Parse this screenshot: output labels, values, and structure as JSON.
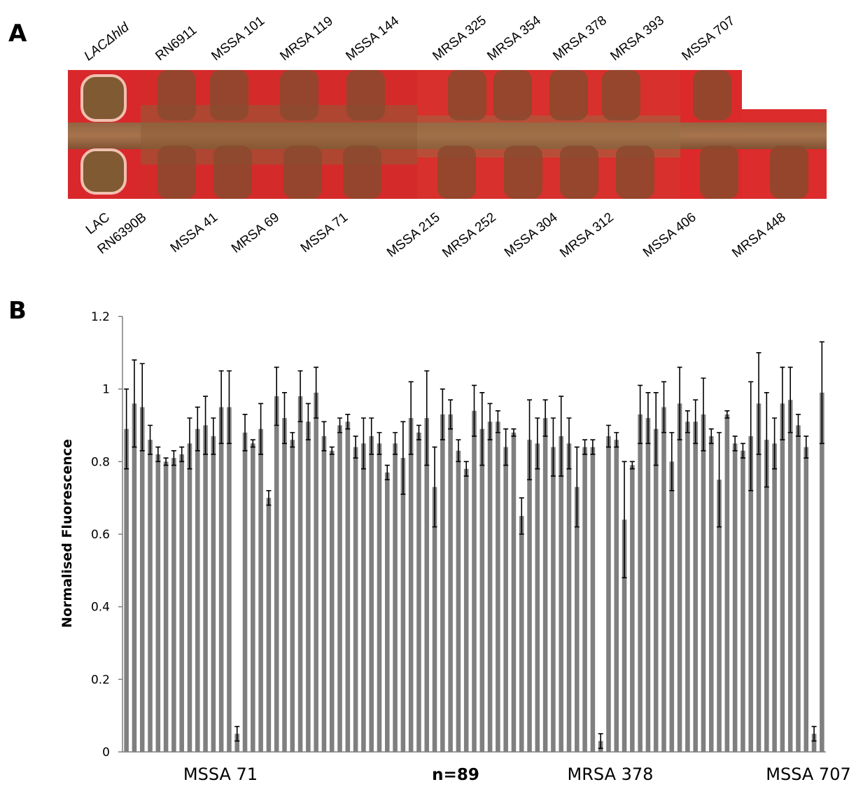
{
  "panels": {
    "a": "A",
    "b": "B"
  },
  "plate_labels": {
    "top": [
      "LACΔhld",
      "RN6911",
      "MSSA 101",
      "MRSA 119",
      "MSSA 144",
      "MRSA 325",
      "MRSA 354",
      "MRSA 378",
      "MRSA 393",
      "MSSA 707"
    ],
    "bottom": [
      "LAC",
      "RN6390B",
      "MSSA 41",
      "MRSA 69",
      "MSSA 71",
      "MSSA 215",
      "MRSA 252",
      "MSSA 304",
      "MRSA 312",
      "MSSA 406",
      "MRSA 448"
    ]
  },
  "colors": {
    "plate_red": "#d8282b",
    "streak": "#8a5a32",
    "bar": "#7f7f7f",
    "error": "#000000"
  },
  "chart_data": {
    "type": "bar",
    "title": "",
    "xlabel": "",
    "ylabel": "Normalised Fluorescence",
    "ylim": [
      0,
      1.2
    ],
    "yticks": [
      "0",
      "0.2",
      "0.4",
      "0.6",
      "0.8",
      "1",
      "1.2"
    ],
    "x_labels": [
      {
        "text": "MSSA 71",
        "bar_index": 29
      },
      {
        "text": "n=89",
        "bar_index": 0
      },
      {
        "text": "MRSA 378",
        "bar_index": 63
      },
      {
        "text": "MSSA 707",
        "bar_index": 88
      }
    ],
    "values": [
      0.89,
      0.96,
      0.95,
      0.86,
      0.82,
      0.8,
      0.81,
      0.82,
      0.85,
      0.89,
      0.9,
      0.87,
      0.95,
      0.95,
      0.05,
      0.88,
      0.85,
      0.89,
      0.7,
      0.98,
      0.92,
      0.86,
      0.98,
      0.91,
      0.99,
      0.87,
      0.83,
      0.9,
      0.91,
      0.84,
      0.85,
      0.87,
      0.85,
      0.77,
      0.85,
      0.81,
      0.92,
      0.88,
      0.92,
      0.73,
      0.93,
      0.93,
      0.83,
      0.78,
      0.94,
      0.89,
      0.91,
      0.91,
      0.84,
      0.88,
      0.65,
      0.86,
      0.85,
      0.92,
      0.84,
      0.87,
      0.85,
      0.73,
      0.84,
      0.84,
      0.03,
      0.87,
      0.86,
      0.64,
      0.79,
      0.93,
      0.92,
      0.89,
      0.95,
      0.8,
      0.96,
      0.91,
      0.91,
      0.93,
      0.87,
      0.75,
      0.93,
      0.85,
      0.83,
      0.87,
      0.96,
      0.86,
      0.85,
      0.96,
      0.97,
      0.9,
      0.84,
      0.05,
      0.99
    ],
    "errors": [
      0.11,
      0.12,
      0.12,
      0.04,
      0.02,
      0.01,
      0.02,
      0.02,
      0.07,
      0.06,
      0.08,
      0.05,
      0.1,
      0.1,
      0.02,
      0.05,
      0.01,
      0.07,
      0.02,
      0.08,
      0.07,
      0.02,
      0.07,
      0.05,
      0.07,
      0.04,
      0.01,
      0.02,
      0.02,
      0.03,
      0.07,
      0.05,
      0.03,
      0.02,
      0.03,
      0.1,
      0.1,
      0.02,
      0.13,
      0.11,
      0.07,
      0.04,
      0.03,
      0.02,
      0.07,
      0.1,
      0.05,
      0.03,
      0.05,
      0.01,
      0.05,
      0.11,
      0.07,
      0.05,
      0.08,
      0.11,
      0.07,
      0.11,
      0.02,
      0.02,
      0.02,
      0.03,
      0.02,
      0.16,
      0.01,
      0.08,
      0.07,
      0.1,
      0.07,
      0.08,
      0.1,
      0.03,
      0.06,
      0.1,
      0.02,
      0.13,
      0.01,
      0.02,
      0.02,
      0.15,
      0.14,
      0.13,
      0.07,
      0.1,
      0.09,
      0.03,
      0.03,
      0.02,
      0.14
    ]
  }
}
